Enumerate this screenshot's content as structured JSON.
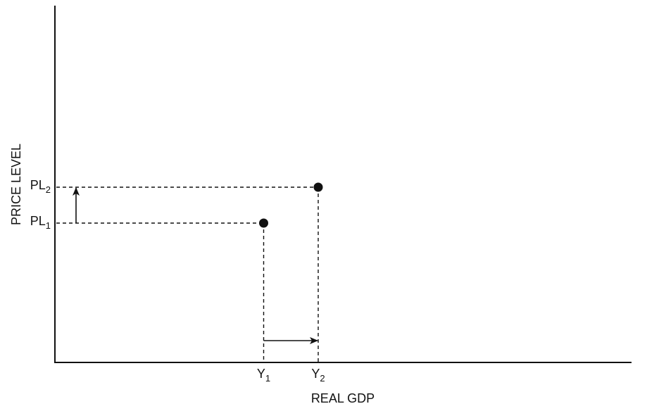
{
  "chart_data": {
    "type": "scatter",
    "title": "",
    "xlabel": "REAL GDP",
    "ylabel": "PRICE LEVEL",
    "x_ticks": [
      {
        "base": "Y",
        "sub": "1",
        "value": 1
      },
      {
        "base": "Y",
        "sub": "2",
        "value": 2
      }
    ],
    "y_ticks": [
      {
        "base": "PL",
        "sub": "1",
        "value": 1
      },
      {
        "base": "PL",
        "sub": "2",
        "value": 2
      }
    ],
    "points": [
      {
        "x": 1,
        "y": 1
      },
      {
        "x": 2,
        "y": 2
      }
    ],
    "arrows": [
      {
        "axis": "x",
        "from": 1,
        "to": 2
      },
      {
        "axis": "y",
        "from": 1,
        "to": 2
      }
    ],
    "grid": false,
    "legend": "none"
  }
}
